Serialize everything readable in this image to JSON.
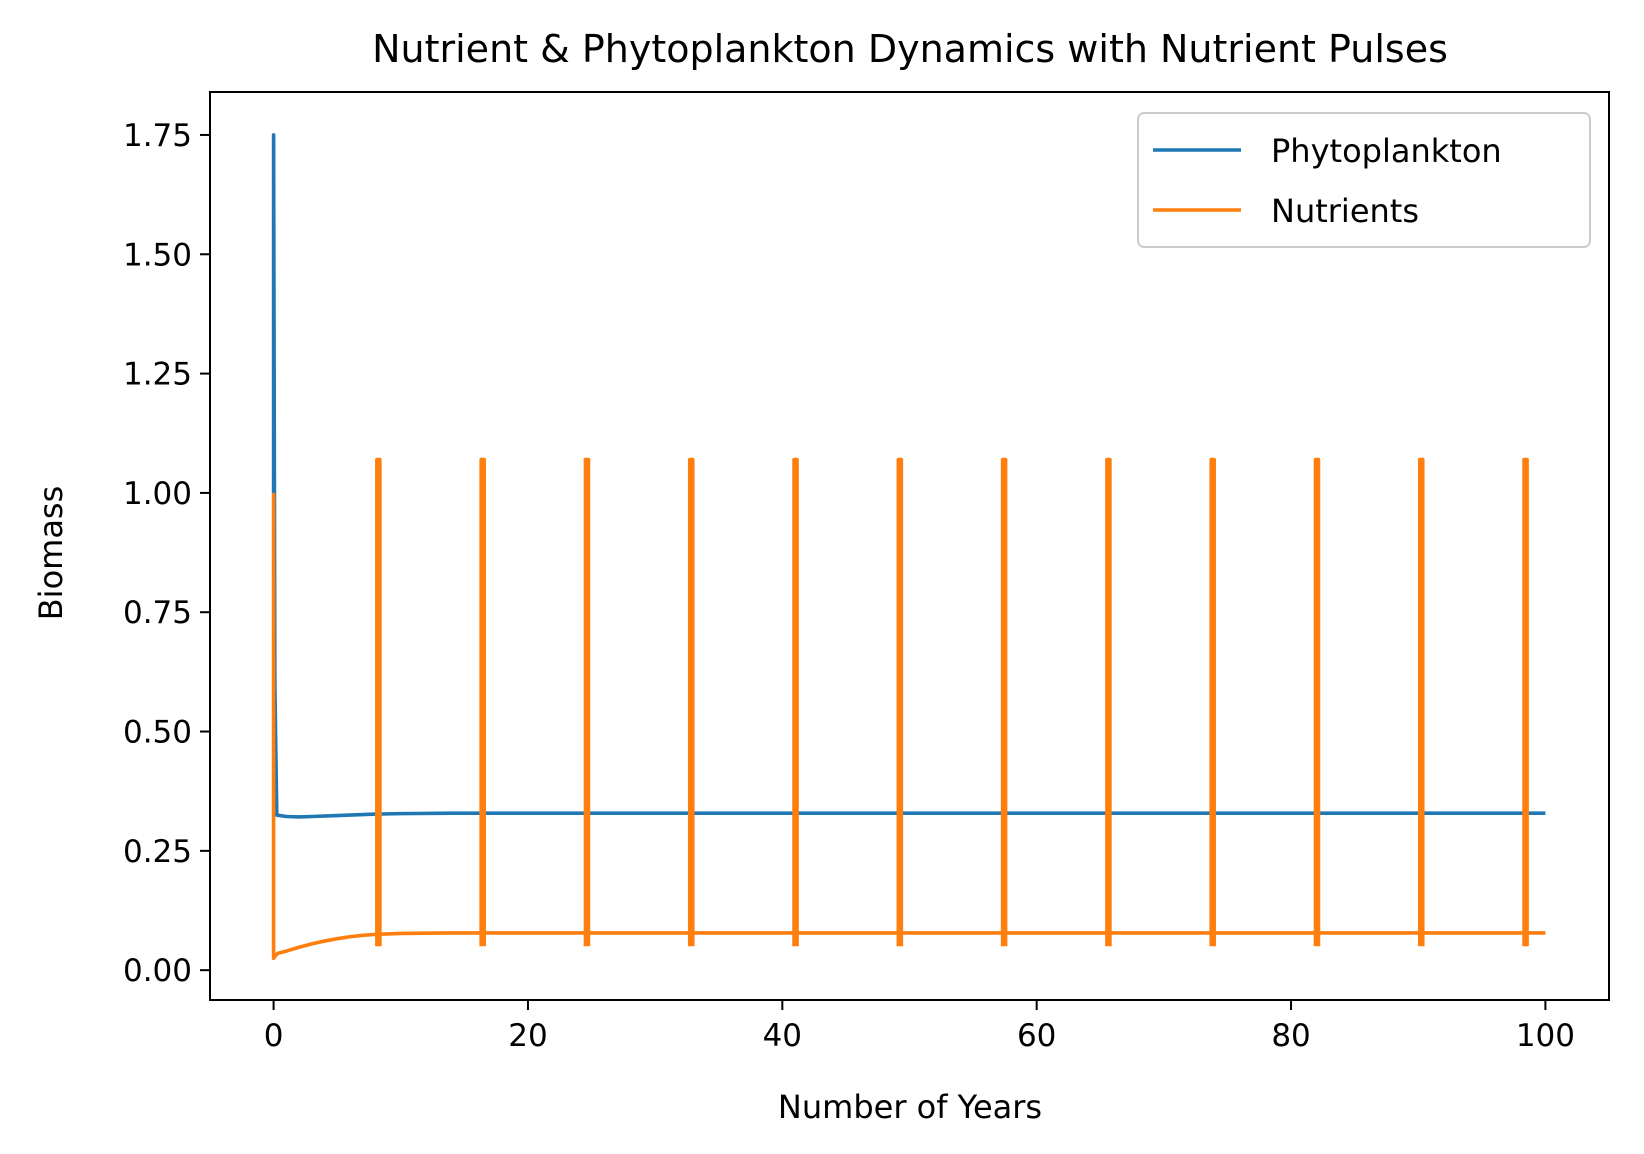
{
  "chart_data": {
    "type": "line",
    "title": "Nutrient & Phytoplankton Dynamics with Nutrient Pulses",
    "xlabel": "Number of Years",
    "ylabel": "Biomass",
    "xlim": [
      -5,
      105
    ],
    "ylim": [
      -0.0625,
      1.84
    ],
    "x_ticks": [
      0,
      20,
      40,
      60,
      80,
      100
    ],
    "y_ticks": [
      0.0,
      0.25,
      0.5,
      0.75,
      1.0,
      1.25,
      1.5,
      1.75
    ],
    "x_tick_labels": [
      "0",
      "20",
      "40",
      "60",
      "80",
      "100"
    ],
    "y_tick_labels": [
      "0.00",
      "0.25",
      "0.50",
      "0.75",
      "1.00",
      "1.25",
      "1.50",
      "1.75"
    ],
    "grid": false,
    "legend_position": "top-right",
    "series": [
      {
        "name": "Phytoplankton",
        "color": "#1f77b4",
        "points": [
          [
            0,
            1.0
          ],
          [
            0,
            1.75
          ],
          [
            0.1,
            0.6
          ],
          [
            0.25,
            0.325
          ],
          [
            1,
            0.322
          ],
          [
            2,
            0.321
          ],
          [
            3,
            0.322
          ],
          [
            5,
            0.324
          ],
          [
            7,
            0.326
          ],
          [
            8,
            0.327
          ],
          [
            10,
            0.328
          ],
          [
            14,
            0.329
          ],
          [
            20,
            0.329
          ],
          [
            100,
            0.329
          ]
        ],
        "pulse_spikes": [
          [
            8.2,
            0.98
          ],
          [
            16.4,
            0.98
          ],
          [
            24.6,
            0.98
          ],
          [
            32.8,
            0.98
          ],
          [
            41.0,
            0.98
          ],
          [
            49.2,
            0.98
          ],
          [
            57.4,
            0.98
          ],
          [
            65.6,
            0.98
          ],
          [
            73.8,
            0.98
          ],
          [
            82.0,
            0.98
          ],
          [
            90.2,
            0.98
          ],
          [
            98.4,
            0.98
          ]
        ]
      },
      {
        "name": "Nutrients",
        "color": "#ff7f0e",
        "points": [
          [
            0,
            1.0
          ],
          [
            0,
            0.025
          ],
          [
            0.3,
            0.035
          ],
          [
            1,
            0.04
          ],
          [
            2,
            0.048
          ],
          [
            3,
            0.055
          ],
          [
            4,
            0.061
          ],
          [
            5,
            0.066
          ],
          [
            6,
            0.07
          ],
          [
            7,
            0.073
          ],
          [
            8,
            0.075
          ],
          [
            10,
            0.077
          ],
          [
            14,
            0.078
          ],
          [
            20,
            0.078
          ],
          [
            100,
            0.078
          ]
        ],
        "pulses": [
          {
            "x": 8.2,
            "high": 1.07,
            "low": 0.05
          },
          {
            "x": 16.4,
            "high": 1.07,
            "low": 0.05
          },
          {
            "x": 24.6,
            "high": 1.07,
            "low": 0.05
          },
          {
            "x": 32.8,
            "high": 1.07,
            "low": 0.05
          },
          {
            "x": 41.0,
            "high": 1.07,
            "low": 0.05
          },
          {
            "x": 49.2,
            "high": 1.07,
            "low": 0.05
          },
          {
            "x": 57.4,
            "high": 1.07,
            "low": 0.05
          },
          {
            "x": 65.6,
            "high": 1.07,
            "low": 0.05
          },
          {
            "x": 73.8,
            "high": 1.07,
            "low": 0.05
          },
          {
            "x": 82.0,
            "high": 1.07,
            "low": 0.05
          },
          {
            "x": 90.2,
            "high": 1.07,
            "low": 0.05
          },
          {
            "x": 98.4,
            "high": 1.07,
            "low": 0.05
          }
        ]
      }
    ]
  }
}
